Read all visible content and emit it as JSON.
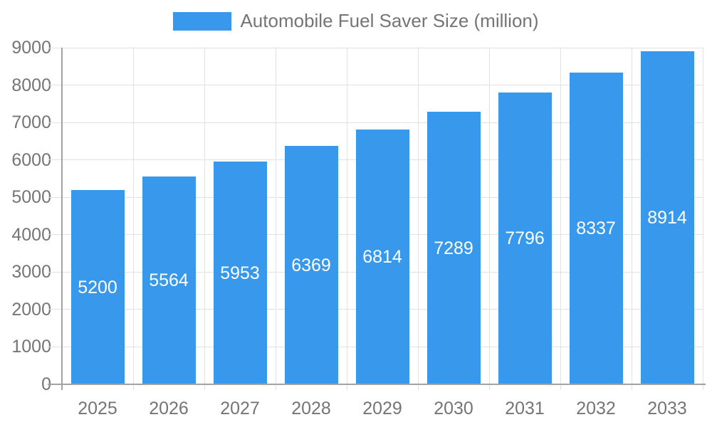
{
  "legend": {
    "label": "Automobile Fuel Saver Size (million)"
  },
  "colors": {
    "bar": "#3899EC",
    "grid": "#E1E1E1",
    "axis": "#A3A3A3",
    "text": "#757575",
    "value_label": "#FFFFFF",
    "background": "#FFFFFF"
  },
  "chart_data": {
    "type": "bar",
    "title": "",
    "legend_label": "Automobile Fuel Saver Size (million)",
    "legend_position": "top-center",
    "categories": [
      "2025",
      "2026",
      "2027",
      "2028",
      "2029",
      "2030",
      "2031",
      "2032",
      "2033"
    ],
    "values": [
      5200,
      5564,
      5953,
      6369,
      6814,
      7289,
      7796,
      8337,
      8914
    ],
    "xlabel": "",
    "ylabel": "",
    "ylim": [
      0,
      9000
    ],
    "ytick_step": 1000,
    "yticks": [
      "0",
      "1000",
      "2000",
      "3000",
      "4000",
      "5000",
      "6000",
      "7000",
      "8000",
      "9000"
    ],
    "grid": true,
    "value_labels": "inside-center"
  }
}
